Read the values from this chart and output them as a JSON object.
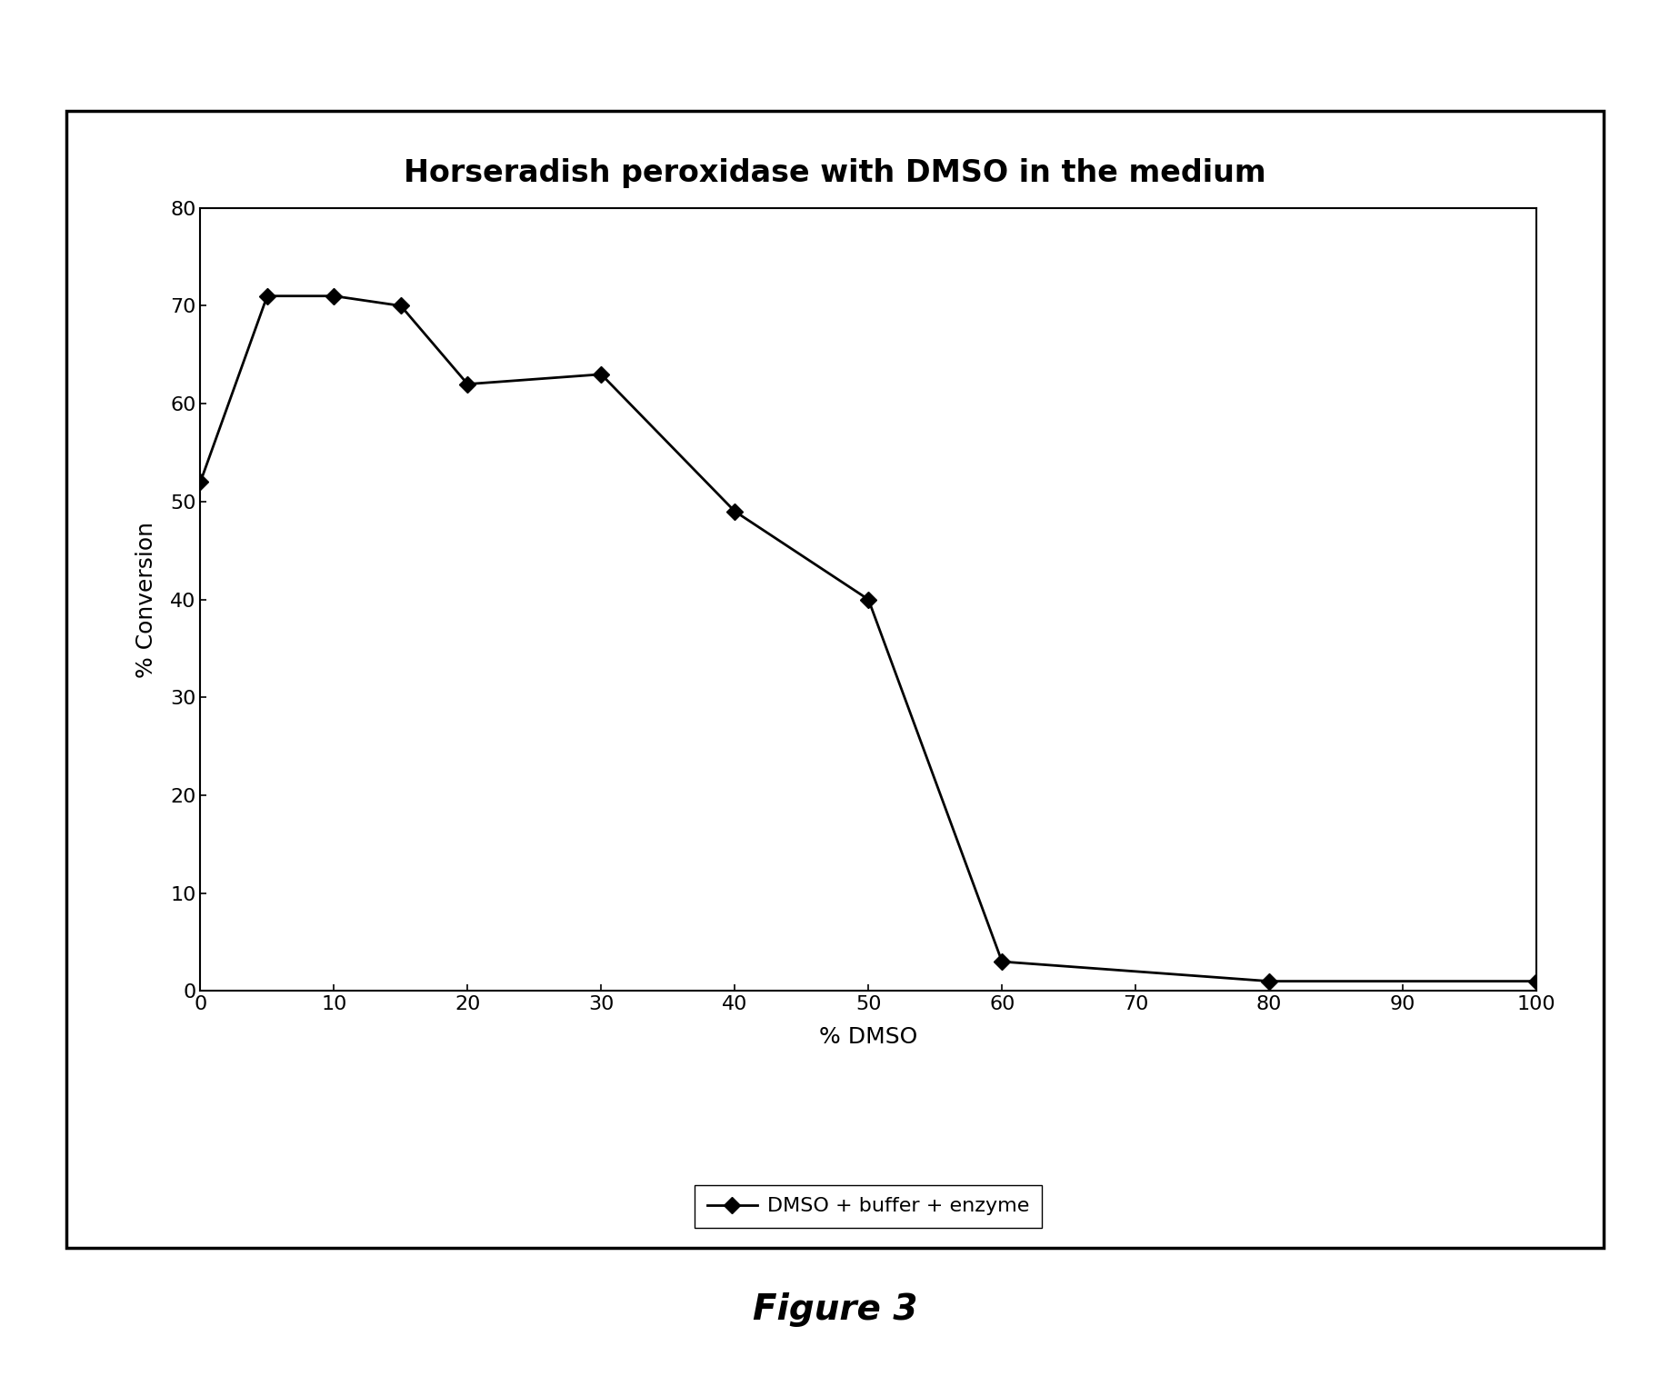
{
  "title": "Horseradish peroxidase with DMSO in the medium",
  "xlabel": "% DMSO",
  "ylabel": "% Conversion",
  "x_values": [
    0,
    5,
    10,
    15,
    20,
    30,
    40,
    50,
    60,
    80,
    100
  ],
  "y_values": [
    52,
    71,
    71,
    70,
    62,
    63,
    49,
    40,
    3,
    1,
    1
  ],
  "xlim": [
    0,
    100
  ],
  "ylim": [
    0,
    80
  ],
  "xticks": [
    0,
    10,
    20,
    30,
    40,
    50,
    60,
    70,
    80,
    90,
    100
  ],
  "yticks": [
    0,
    10,
    20,
    30,
    40,
    50,
    60,
    70,
    80
  ],
  "line_color": "#000000",
  "marker": "D",
  "marker_size": 9,
  "marker_facecolor": "#000000",
  "line_width": 2.0,
  "legend_label": "DMSO + buffer + enzyme",
  "figure_caption": "Figure 3",
  "background_color": "#ffffff",
  "title_fontsize": 24,
  "label_fontsize": 18,
  "tick_fontsize": 16,
  "legend_fontsize": 16,
  "caption_fontsize": 28
}
